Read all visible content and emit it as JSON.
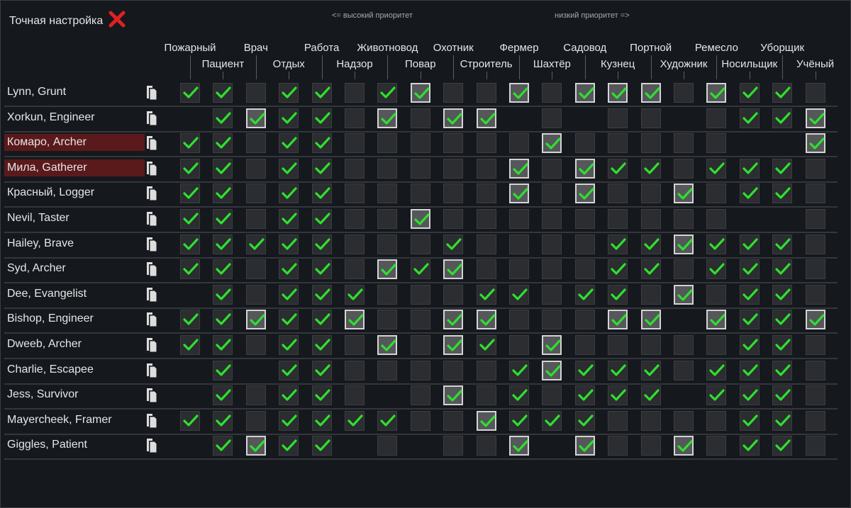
{
  "title": "Точная настройка",
  "close_icon": "red-x-icon",
  "priority_high": "<= высокий приоритет",
  "priority_low": "низкий приоритет =>",
  "colors": {
    "check": "#2ee02e",
    "highlight_name": "#5a1a1c",
    "close": "#e02020"
  },
  "columns": [
    "Пожарный",
    "Пациент",
    "Врач",
    "Отдых",
    "Работа",
    "Надзор",
    "Животновод",
    "Повар",
    "Охотник",
    "Строитель",
    "Фермер",
    "Шахтёр",
    "Садовод",
    "Кузнец",
    "Портной",
    "Художник",
    "Ремесло",
    "Носильщик",
    "Уборщик",
    "Учёный"
  ],
  "legend": {
    "C": "checked",
    "H": "checked-highlighted",
    "E": "empty",
    "N": "disabled"
  },
  "pawns": [
    {
      "name": "Lynn, Grunt",
      "hl": false,
      "cells": "CCECCECHEEHEHHHEHCCE"
    },
    {
      "name": "Xorkun, Engineer",
      "hl": false,
      "cells": "NCHCCEHEHHNENEENECCH"
    },
    {
      "name": "Комаро, Archer",
      "hl": true,
      "cells": "CCECCEEEEEEHEEEEENNH"
    },
    {
      "name": "Мила, Gatherer",
      "hl": true,
      "cells": "CCECCEEEEEHEHCCECCCE"
    },
    {
      "name": "Красный, Logger",
      "hl": false,
      "cells": "CCECCEEEEEHEHEEHECCE"
    },
    {
      "name": "Nevil, Taster",
      "hl": false,
      "cells": "CCECCEEHEEEEEEEEENNE"
    },
    {
      "name": "Hailey, Brave",
      "hl": false,
      "cells": "CCCCCEEECEEEECCHCCCE"
    },
    {
      "name": "Syd, Archer",
      "hl": false,
      "cells": "CCECCEHCHEEEECCECCCE"
    },
    {
      "name": "Dee, Evangelist",
      "hl": false,
      "cells": "NCECCCEEECCECCEHECCE"
    },
    {
      "name": "Bishop, Engineer",
      "hl": false,
      "cells": "CCHCCHEEHHEEEHHNHCCH"
    },
    {
      "name": "Dweeb, Archer",
      "hl": false,
      "cells": "CCECCEHEHCEHEEEEECCE"
    },
    {
      "name": "Charlie, Escapee",
      "hl": false,
      "cells": "NCNCCEEEEECHCCCECCCE"
    },
    {
      "name": "Jess, Survivor",
      "hl": false,
      "cells": "NCECCENEHECECCCNCCCE"
    },
    {
      "name": "Mayercheek, Framer",
      "hl": false,
      "cells": "CCECCCCEEHCCCEEEECCE"
    },
    {
      "name": "Giggles, Patient",
      "hl": false,
      "cells": "NCHCCNENEEHNHEEHECCE"
    }
  ]
}
